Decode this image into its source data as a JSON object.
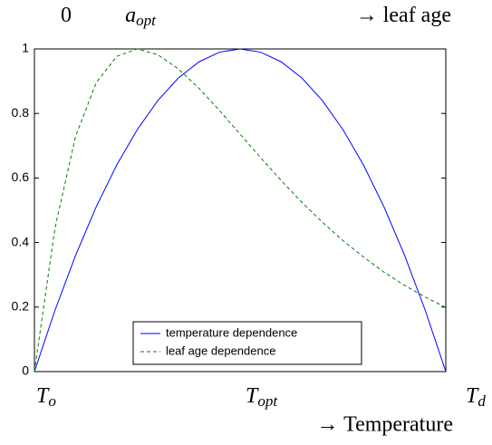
{
  "chart_data": {
    "type": "line",
    "top_labels": [
      {
        "text": "0"
      },
      {
        "text": "a",
        "sub": "opt"
      },
      {
        "text": "→ leaf age"
      }
    ],
    "categories": [
      {
        "text": "T",
        "sub": "o"
      },
      null,
      null,
      null,
      null,
      null,
      null,
      null,
      null,
      null,
      {
        "text": "T",
        "sub": "opt"
      },
      null,
      null,
      null,
      null,
      null,
      null,
      null,
      null,
      null,
      {
        "text": "T",
        "sub": "d"
      }
    ],
    "xlabel": "→ Temperature",
    "series": [
      {
        "name": "temperature dependence",
        "color": "#0000ff",
        "dash": "solid",
        "values": [
          0,
          0.19,
          0.36,
          0.51,
          0.64,
          0.75,
          0.84,
          0.91,
          0.96,
          0.99,
          1,
          0.99,
          0.96,
          0.91,
          0.84,
          0.75,
          0.64,
          0.51,
          0.36,
          0.19,
          0
        ]
      },
      {
        "name": "leaf age dependence",
        "color": "#008000",
        "dash": "dashed",
        "values": [
          0,
          0.445,
          0.729,
          0.895,
          0.977,
          1,
          0.982,
          0.938,
          0.878,
          0.809,
          0.736,
          0.663,
          0.592,
          0.525,
          0.463,
          0.406,
          0.355,
          0.308,
          0.267,
          0.231,
          0.199
        ]
      }
    ],
    "ylim": [
      0,
      1
    ],
    "yticks": [
      0,
      0.2,
      0.4,
      0.6,
      0.8,
      1
    ],
    "legend": "lower center"
  }
}
